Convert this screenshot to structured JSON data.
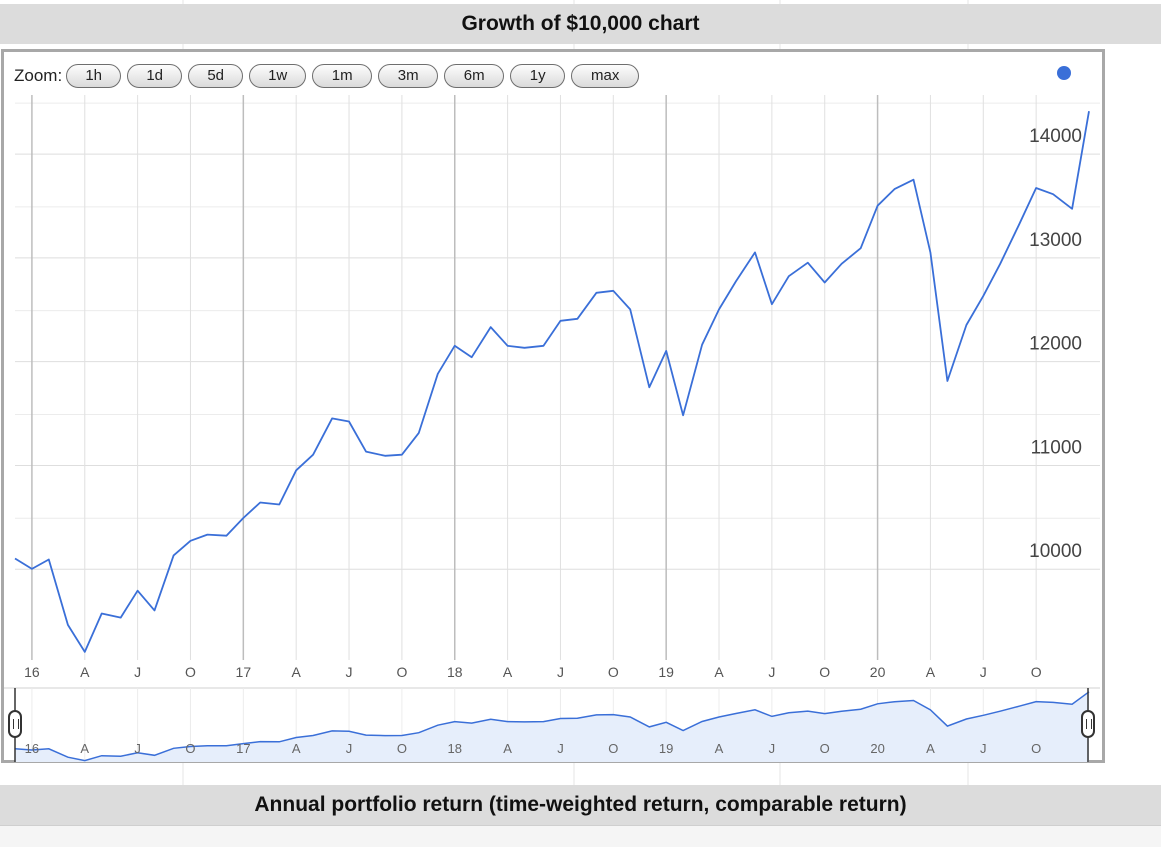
{
  "header": {
    "title": "Growth of $10,000 chart"
  },
  "footer": {
    "title": "Annual portfolio return (time-weighted return, comparable return)"
  },
  "zoom": {
    "label": "Zoom:",
    "buttons": [
      "1h",
      "1d",
      "5d",
      "1w",
      "1m",
      "3m",
      "6m",
      "1y",
      "max"
    ]
  },
  "colors": {
    "line": "#3a6fd8",
    "fill": "#e6eefb",
    "grid": "#dedede",
    "header_bg": "#dcdcdc"
  },
  "chart_data": {
    "type": "line",
    "title": "Growth of $10,000 chart",
    "xlabel": "",
    "ylabel": "",
    "ylim": [
      9000,
      14300
    ],
    "y_ticks": [
      10000,
      11000,
      12000,
      13000,
      14000
    ],
    "x_ticks": [
      {
        "label": "16",
        "x": 2016.0
      },
      {
        "label": "A",
        "x": 2016.25
      },
      {
        "label": "J",
        "x": 2016.5
      },
      {
        "label": "O",
        "x": 2016.75
      },
      {
        "label": "17",
        "x": 2017.0
      },
      {
        "label": "A",
        "x": 2017.25
      },
      {
        "label": "J",
        "x": 2017.5
      },
      {
        "label": "O",
        "x": 2017.75
      },
      {
        "label": "18",
        "x": 2018.0
      },
      {
        "label": "A",
        "x": 2018.25
      },
      {
        "label": "J",
        "x": 2018.5
      },
      {
        "label": "O",
        "x": 2018.75
      },
      {
        "label": "19",
        "x": 2019.0
      },
      {
        "label": "A",
        "x": 2019.25
      },
      {
        "label": "J",
        "x": 2019.5
      },
      {
        "label": "O",
        "x": 2019.75
      },
      {
        "label": "20",
        "x": 2020.0
      },
      {
        "label": "A",
        "x": 2020.25
      },
      {
        "label": "J",
        "x": 2020.5
      },
      {
        "label": "O",
        "x": 2020.75
      }
    ],
    "grid": true,
    "legend": "top-right",
    "series": [
      {
        "points": [
          [
            2015.92,
            9930
          ],
          [
            2016.0,
            9830
          ],
          [
            2016.08,
            9920
          ],
          [
            2016.17,
            9290
          ],
          [
            2016.25,
            9030
          ],
          [
            2016.33,
            9400
          ],
          [
            2016.42,
            9360
          ],
          [
            2016.5,
            9620
          ],
          [
            2016.58,
            9430
          ],
          [
            2016.67,
            9960
          ],
          [
            2016.75,
            10100
          ],
          [
            2016.83,
            10160
          ],
          [
            2016.92,
            10150
          ],
          [
            2017.0,
            10320
          ],
          [
            2017.08,
            10470
          ],
          [
            2017.17,
            10450
          ],
          [
            2017.25,
            10780
          ],
          [
            2017.33,
            10930
          ],
          [
            2017.42,
            11280
          ],
          [
            2017.5,
            11250
          ],
          [
            2017.58,
            10960
          ],
          [
            2017.67,
            10920
          ],
          [
            2017.75,
            10930
          ],
          [
            2017.83,
            11140
          ],
          [
            2017.92,
            11710
          ],
          [
            2018.0,
            11980
          ],
          [
            2018.08,
            11870
          ],
          [
            2018.17,
            12160
          ],
          [
            2018.25,
            11980
          ],
          [
            2018.33,
            11960
          ],
          [
            2018.42,
            11980
          ],
          [
            2018.5,
            12220
          ],
          [
            2018.58,
            12240
          ],
          [
            2018.67,
            12490
          ],
          [
            2018.75,
            12510
          ],
          [
            2018.83,
            12330
          ],
          [
            2018.92,
            11580
          ],
          [
            2019.0,
            11930
          ],
          [
            2019.08,
            11310
          ],
          [
            2019.17,
            11990
          ],
          [
            2019.25,
            12330
          ],
          [
            2019.33,
            12600
          ],
          [
            2019.42,
            12880
          ],
          [
            2019.5,
            12380
          ],
          [
            2019.58,
            12650
          ],
          [
            2019.67,
            12780
          ],
          [
            2019.75,
            12590
          ],
          [
            2019.83,
            12770
          ],
          [
            2019.92,
            12920
          ],
          [
            2020.0,
            13330
          ],
          [
            2020.08,
            13490
          ],
          [
            2020.17,
            13580
          ],
          [
            2020.25,
            12880
          ],
          [
            2020.33,
            11640
          ],
          [
            2020.42,
            12180
          ],
          [
            2020.5,
            12460
          ],
          [
            2020.58,
            12770
          ],
          [
            2020.67,
            13150
          ],
          [
            2020.75,
            13500
          ],
          [
            2020.83,
            13440
          ],
          [
            2020.92,
            13300
          ],
          [
            2021.0,
            14240
          ]
        ]
      }
    ]
  }
}
